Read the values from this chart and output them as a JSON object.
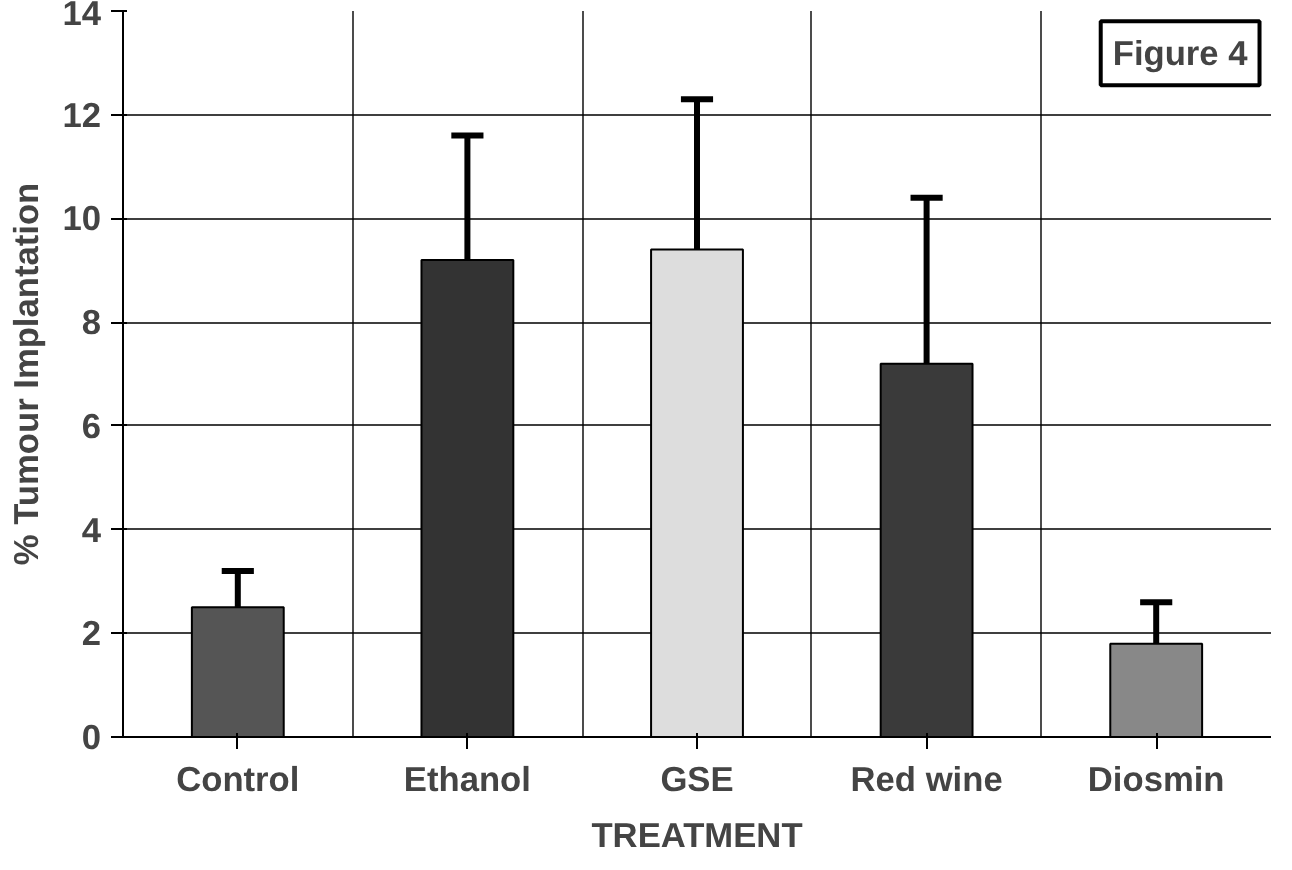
{
  "chart_data": {
    "type": "bar",
    "xlabel": "TREATMENT",
    "ylabel": "% Tumour Implantation",
    "categories": [
      "Control",
      "Ethanol",
      "GSE",
      "Red wine",
      "Diosmin"
    ],
    "values": [
      2.5,
      9.2,
      9.4,
      7.2,
      1.8
    ],
    "colors": [
      "#555555",
      "#333333",
      "#dddddd",
      "#3a3a3a",
      "#888888"
    ],
    "errors": [
      [
        2.5,
        3.2
      ],
      [
        9.2,
        11.6
      ],
      [
        9.4,
        12.3
      ],
      [
        7.2,
        10.4
      ],
      [
        1.8,
        2.6
      ]
    ],
    "ylim": [
      0,
      14
    ],
    "yticks": [
      0,
      2,
      4,
      6,
      8,
      10,
      12,
      14
    ],
    "grid": true,
    "annotations": [
      "Figure 4"
    ]
  }
}
